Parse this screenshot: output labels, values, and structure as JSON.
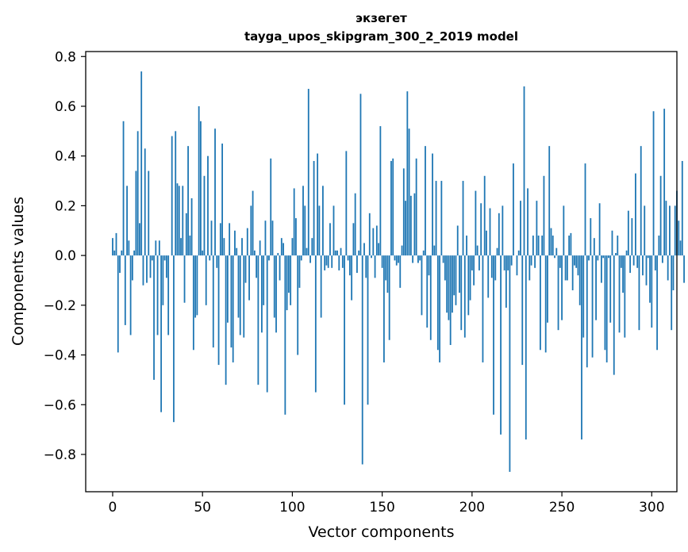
{
  "chart_data": {
    "type": "bar",
    "title_line1": "экзегет",
    "title_line2": "tayga_upos_skipgram_300_2_2019 model",
    "xlabel": "Vector components",
    "ylabel": "Components values",
    "xlim": [
      -15,
      314
    ],
    "ylim": [
      -0.95,
      0.82
    ],
    "xticks": [
      0,
      50,
      100,
      150,
      200,
      250,
      300
    ],
    "yticks": [
      -0.8,
      -0.6,
      -0.4,
      -0.2,
      0.0,
      0.2,
      0.4,
      0.6,
      0.8
    ],
    "ytick_labels": [
      "−0.8",
      "−0.6",
      "−0.4",
      "−0.2",
      "0.0",
      "0.2",
      "0.4",
      "0.6",
      "0.8"
    ],
    "bar_color": "#1f77b4",
    "values": [
      0.07,
      0.02,
      0.09,
      -0.39,
      -0.07,
      0.02,
      0.54,
      -0.28,
      0.28,
      0.06,
      -0.32,
      -0.1,
      0.02,
      0.34,
      0.5,
      0.13,
      0.74,
      -0.12,
      0.43,
      -0.11,
      0.34,
      -0.09,
      -0.02,
      -0.5,
      0.06,
      -0.32,
      0.06,
      -0.63,
      -0.2,
      -0.02,
      -0.09,
      -0.32,
      0.0,
      0.48,
      -0.67,
      0.5,
      0.29,
      0.28,
      0.07,
      0.28,
      -0.19,
      0.17,
      0.44,
      0.08,
      0.23,
      -0.38,
      -0.25,
      -0.24,
      0.6,
      0.54,
      0.02,
      0.32,
      -0.2,
      0.4,
      -0.02,
      0.14,
      -0.37,
      0.51,
      -0.05,
      -0.44,
      0.13,
      0.45,
      0.07,
      -0.52,
      -0.27,
      0.13,
      -0.37,
      -0.43,
      0.1,
      0.03,
      -0.25,
      -0.32,
      0.07,
      -0.33,
      -0.11,
      0.11,
      -0.18,
      0.2,
      0.26,
      0.02,
      -0.09,
      -0.52,
      0.06,
      -0.31,
      -0.2,
      0.14,
      -0.55,
      -0.02,
      0.39,
      0.14,
      -0.25,
      -0.31,
      0.01,
      -0.1,
      0.07,
      0.05,
      -0.64,
      -0.22,
      -0.15,
      -0.2,
      0.07,
      0.27,
      0.15,
      -0.4,
      -0.13,
      -0.02,
      0.28,
      0.2,
      0.03,
      0.67,
      -0.03,
      0.07,
      0.38,
      -0.55,
      0.41,
      0.2,
      -0.25,
      0.28,
      -0.06,
      -0.04,
      -0.05,
      0.13,
      -0.05,
      0.2,
      0.02,
      0.02,
      -0.06,
      0.03,
      -0.05,
      -0.6,
      0.42,
      -0.02,
      -0.08,
      -0.18,
      0.13,
      0.25,
      -0.07,
      0.02,
      0.65,
      -0.84,
      0.05,
      -0.09,
      -0.6,
      0.17,
      -0.01,
      0.11,
      -0.09,
      0.12,
      0.05,
      0.52,
      -0.05,
      -0.43,
      -0.1,
      -0.15,
      -0.34,
      0.38,
      0.39,
      -0.02,
      -0.04,
      -0.03,
      -0.13,
      0.04,
      0.35,
      0.22,
      0.66,
      0.51,
      0.24,
      -0.03,
      0.25,
      0.39,
      -0.03,
      -0.02,
      -0.24,
      0.02,
      0.44,
      -0.29,
      -0.08,
      -0.34,
      0.41,
      0.04,
      0.3,
      -0.38,
      -0.43,
      0.3,
      -0.03,
      -0.1,
      -0.23,
      -0.26,
      -0.36,
      -0.23,
      -0.16,
      -0.2,
      0.12,
      -0.15,
      -0.3,
      0.3,
      -0.33,
      0.08,
      -0.24,
      -0.18,
      -0.06,
      -0.12,
      0.26,
      0.04,
      -0.06,
      0.21,
      -0.43,
      0.32,
      0.1,
      -0.17,
      0.19,
      -0.09,
      -0.64,
      -0.1,
      0.03,
      0.17,
      -0.72,
      0.2,
      -0.06,
      -0.21,
      -0.06,
      -0.87,
      -0.04,
      0.37,
      0.0,
      -0.08,
      0.02,
      0.22,
      -0.44,
      0.68,
      -0.74,
      0.27,
      -0.1,
      -0.04,
      0.08,
      -0.05,
      0.22,
      0.08,
      -0.38,
      0.08,
      0.32,
      -0.39,
      -0.27,
      0.44,
      0.11,
      0.08,
      -0.01,
      0.03,
      -0.3,
      -0.05,
      -0.26,
      0.2,
      -0.1,
      -0.1,
      0.08,
      0.09,
      -0.14,
      -0.04,
      -0.05,
      -0.08,
      -0.2,
      -0.74,
      -0.33,
      0.37,
      -0.45,
      -0.02,
      0.15,
      -0.41,
      0.07,
      -0.26,
      -0.02,
      0.21,
      -0.11,
      -0.01,
      -0.38,
      -0.43,
      -0.01,
      -0.27,
      0.1,
      -0.48,
      0.01,
      0.08,
      -0.31,
      -0.05,
      -0.15,
      -0.33,
      0.02,
      0.18,
      -0.07,
      0.15,
      -0.04,
      0.33,
      -0.05,
      -0.3,
      0.44,
      -0.08,
      0.2,
      -0.12,
      -0.01,
      -0.19,
      -0.29,
      0.58,
      -0.06,
      -0.38,
      0.08,
      0.32,
      -0.03,
      0.59,
      0.22,
      -0.1,
      0.2,
      -0.3,
      -0.14,
      0.2,
      0.26,
      0.14,
      0.06,
      0.38,
      -0.11
    ]
  }
}
